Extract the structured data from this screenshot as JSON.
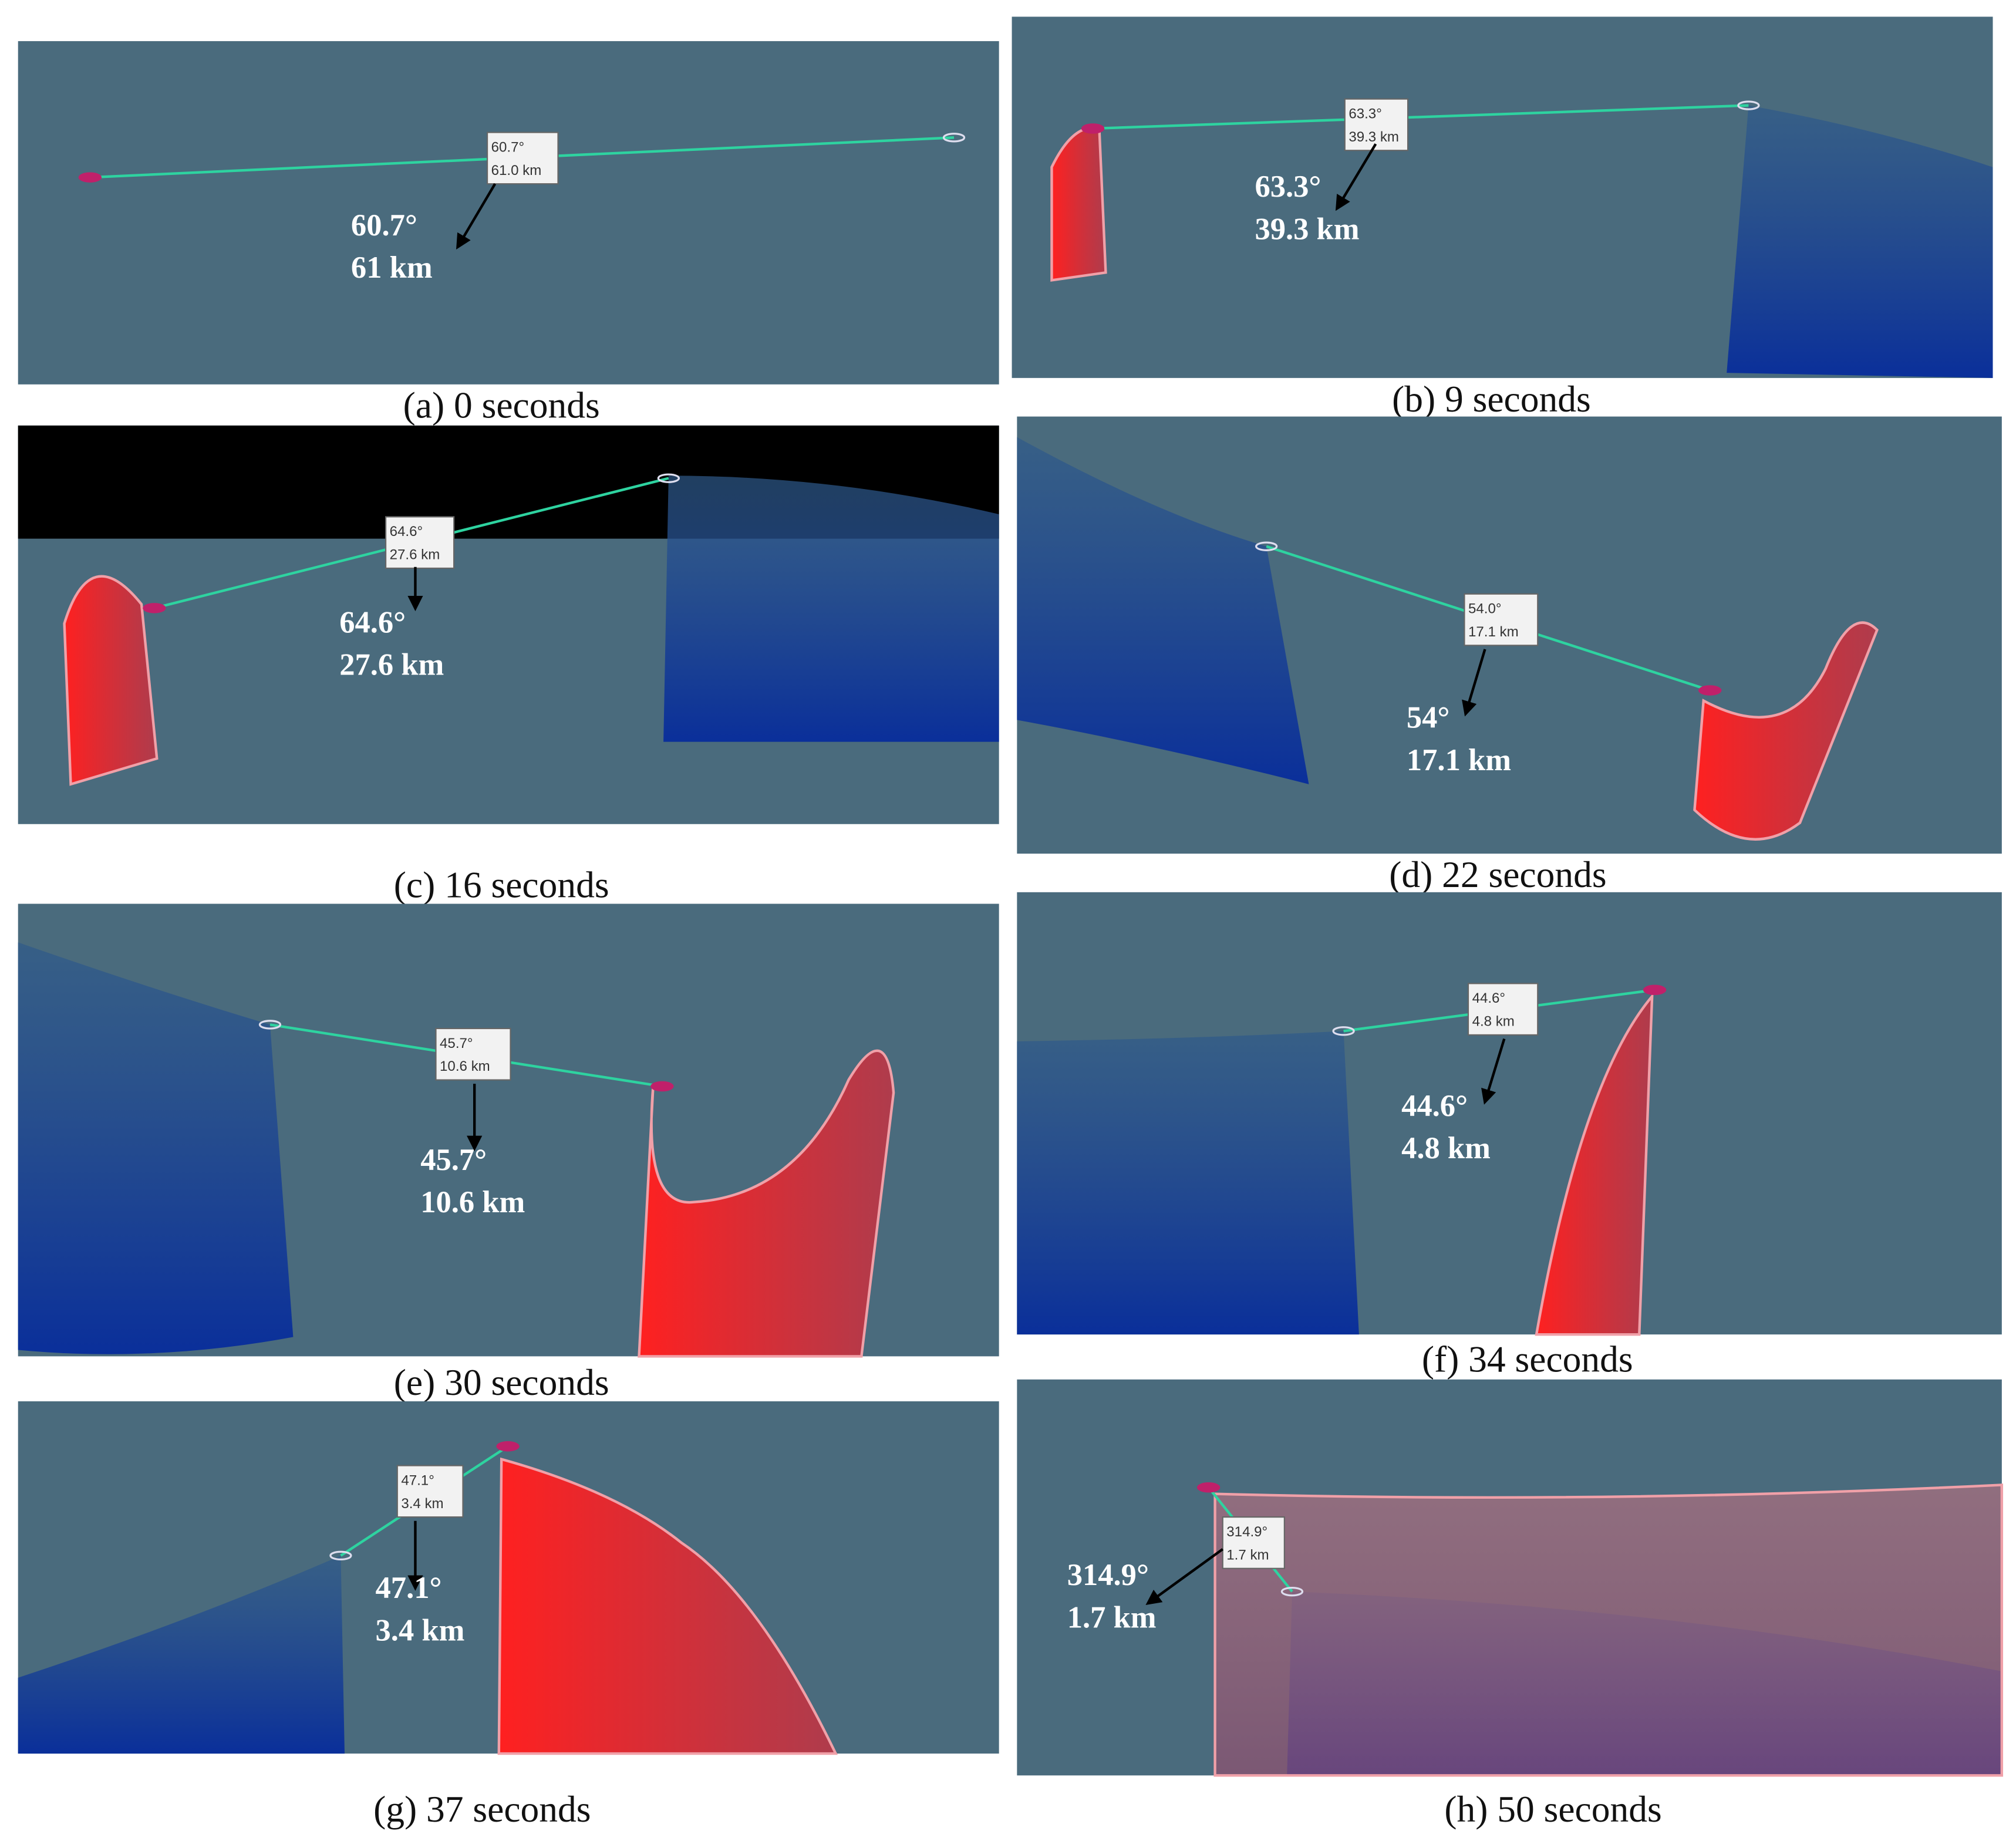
{
  "panels": [
    {
      "caption": "(a) 0 seconds",
      "label_box": [
        "60.7°",
        "61.0 km"
      ],
      "annotation": [
        "60.7°",
        "61 km"
      ]
    },
    {
      "caption": "(b) 9 seconds",
      "label_box": [
        "63.3°",
        "39.3 km"
      ],
      "annotation": [
        "63.3°",
        "39.3 km"
      ]
    },
    {
      "caption": "(c) 16 seconds",
      "label_box": [
        "64.6°",
        "27.6 km"
      ],
      "annotation": [
        "64.6°",
        "27.6 km"
      ]
    },
    {
      "caption": "(d) 22 seconds",
      "label_box": [
        "54.0°",
        "17.1 km"
      ],
      "annotation": [
        "54°",
        "17.1 km"
      ]
    },
    {
      "caption": "(e) 30 seconds",
      "label_box": [
        "45.7°",
        "10.6 km"
      ],
      "annotation": [
        "45.7°",
        "10.6 km"
      ]
    },
    {
      "caption": "(f) 34 seconds",
      "label_box": [
        "44.6°",
        "4.8 km"
      ],
      "annotation": [
        "44.6°",
        "4.8 km"
      ]
    },
    {
      "caption": "(g) 37 seconds",
      "label_box": [
        "47.1°",
        "3.4 km"
      ],
      "annotation": [
        "47.1°",
        "3.4 km"
      ]
    },
    {
      "caption": "(h) 50 seconds",
      "label_box": [
        "314.9°",
        "1.7 km"
      ],
      "annotation": [
        "314.9°",
        "1.7 km"
      ]
    }
  ]
}
